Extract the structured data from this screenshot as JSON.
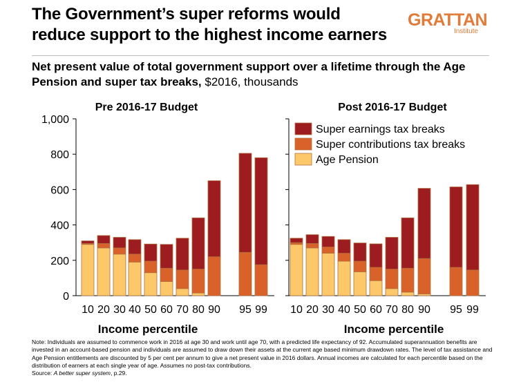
{
  "title_line1": "The Government’s super reforms would",
  "title_line2": "reduce support to the highest income earners",
  "logo": {
    "main": "GRATTAN",
    "sub": "Institute",
    "color": "#e07b39"
  },
  "subtitle_bold": "Net present value of total government support over a lifetime through the Age Pension and super tax breaks,",
  "subtitle_rest": " $2016, thousands",
  "notes": {
    "text": "Note: Individuals are assumed to commence work in 2016 at age 30 and work until age 70, with a predicted life expectancy of 92. Accumulated superannuation benefits are invested in an account-based pension and individuals are assumed to draw down their assets at the current age based minimum drawdown rates. The level of tax assistance and Age Pension entitlements are discounted by 5 per cent per annum to give a net present value in 2016 dollars. Annual incomes are calculated for each percentile based on the distribution of earners at each single year of age. Assumes no post-tax contributions.",
    "source_prefix": "Source: ",
    "source_title": "A better super system",
    "source_suffix": ", p.29."
  },
  "chart_data": {
    "type": "bar",
    "stacked": true,
    "ylim": [
      0,
      1000
    ],
    "yticks": [
      "0",
      "200",
      "400",
      "600",
      "800",
      "1,000"
    ],
    "ytick_values": [
      0,
      200,
      400,
      600,
      800,
      1000
    ],
    "xlabel": "Income percentile",
    "legend": [
      "Super earnings tax breaks",
      "Super contributions tax breaks",
      "Age Pension"
    ],
    "legend_placement": "top-right of second panel",
    "colors": {
      "earnings": "#9c1c1f",
      "contributions": "#d8622a",
      "pension": "#fcc86a",
      "border": "#b07040"
    },
    "panels": [
      {
        "title": "Pre 2016-17 Budget",
        "categories": [
          "10",
          "20",
          "30",
          "40",
          "50",
          "60",
          "70",
          "80",
          "90",
          "95",
          "99"
        ],
        "series": [
          {
            "name": "Age Pension",
            "values": [
              290,
              270,
              235,
              190,
              130,
              80,
              40,
              15,
              0,
              0,
              0
            ]
          },
          {
            "name": "Super contributions tax breaks",
            "values": [
              5,
              25,
              35,
              45,
              65,
              75,
              105,
              135,
              220,
              245,
              175
            ]
          },
          {
            "name": "Super earnings tax breaks",
            "values": [
              15,
              45,
              60,
              82,
              97,
              135,
              180,
              290,
              430,
              560,
              605
            ]
          }
        ]
      },
      {
        "title": "Post 2016-17 Budget",
        "categories": [
          "10",
          "20",
          "30",
          "40",
          "50",
          "60",
          "70",
          "80",
          "90",
          "95",
          "99"
        ],
        "series": [
          {
            "name": "Age Pension",
            "values": [
              290,
              270,
              240,
              195,
              135,
              85,
              40,
              20,
              10,
              0,
              0
            ]
          },
          {
            "name": "Super contributions tax breaks",
            "values": [
              10,
              25,
              35,
              45,
              60,
              75,
              110,
              135,
              200,
              160,
              145
            ]
          },
          {
            "name": "Super earnings tax breaks",
            "values": [
              25,
              50,
              60,
              77,
              103,
              133,
              180,
              285,
              397,
              455,
              483
            ]
          }
        ]
      }
    ]
  }
}
